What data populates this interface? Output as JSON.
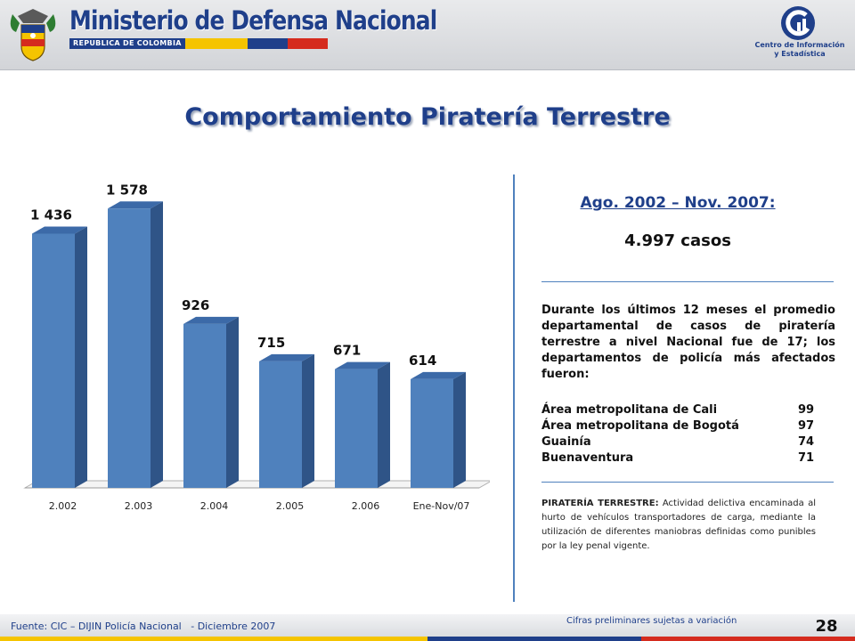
{
  "header": {
    "title": "Ministerio de Defensa Nacional",
    "subtitle": "REPUBLICA DE COLOMBIA",
    "center_label_line1": "Centro de Información",
    "center_label_line2": "y Estadística",
    "emblem_icon": "colombia-coat-of-arms-icon",
    "center_logo_icon": "cie-logo-icon"
  },
  "page_title": "Comportamiento Piratería Terrestre",
  "chart_data": {
    "type": "bar",
    "categories": [
      "2.002",
      "2.003",
      "2.004",
      "2.005",
      "2.006",
      "Ene-Nov/07"
    ],
    "values": [
      1436,
      1578,
      926,
      715,
      671,
      614
    ],
    "data_labels": [
      "1 436",
      "1 578",
      "926",
      "715",
      "671",
      "614"
    ],
    "title": "",
    "xlabel": "",
    "ylabel": "",
    "ylim": [
      0,
      1700
    ],
    "grid": false,
    "legend": "none",
    "style": "3d-columns"
  },
  "summary": {
    "period": "Ago. 2002 – Nov. 2007:",
    "total": "4.997 casos",
    "description": "Durante los últimos 12 meses el promedio departamental de casos de piratería terrestre a nivel Nacional fue de 17; los departamentos de policía más afectados fueron:",
    "departments": [
      {
        "name": "Área metropolitana de Cali",
        "value": "99"
      },
      {
        "name": "Área metropolitana de Bogotá",
        "value": "97"
      },
      {
        "name": "Guainía",
        "value": "74"
      },
      {
        "name": "Buenaventura",
        "value": "71"
      }
    ],
    "definition_term": "PIRATERÍA TERRESTRE:",
    "definition_text": " Actividad delictiva encaminada al hurto de vehículos transportadores de carga, mediante la utilización de diferentes maniobras definidas como punibles por la ley penal vigente."
  },
  "footer": {
    "source": "Fuente: CIC – DIJIN Policía Nacional   - Diciembre 2007",
    "preliminary": "Cifras preliminares sujetas a variación",
    "page_number": "28"
  },
  "colors": {
    "brand_blue": "#1f3f8a",
    "bar_front": "#4f81bd",
    "bar_top": "#3c6aa8",
    "bar_side": "#2f5487",
    "flag_yellow": "#f5c400",
    "flag_blue": "#1f3f8a",
    "flag_red": "#d52b1e"
  }
}
